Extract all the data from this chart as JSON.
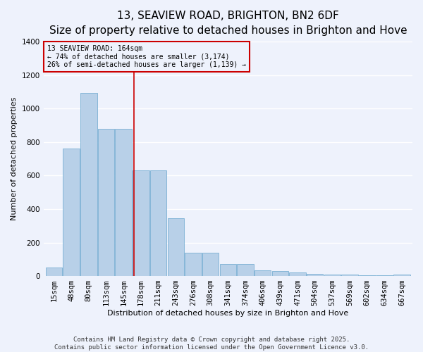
{
  "title": "13, SEAVIEW ROAD, BRIGHTON, BN2 6DF",
  "subtitle": "Size of property relative to detached houses in Brighton and Hove",
  "xlabel": "Distribution of detached houses by size in Brighton and Hove",
  "ylabel": "Number of detached properties",
  "categories": [
    "15sqm",
    "48sqm",
    "80sqm",
    "113sqm",
    "145sqm",
    "178sqm",
    "211sqm",
    "243sqm",
    "276sqm",
    "308sqm",
    "341sqm",
    "374sqm",
    "406sqm",
    "439sqm",
    "471sqm",
    "504sqm",
    "537sqm",
    "569sqm",
    "602sqm",
    "634sqm",
    "667sqm"
  ],
  "bar_heights": [
    50,
    760,
    1095,
    880,
    880,
    630,
    630,
    345,
    140,
    140,
    70,
    70,
    35,
    30,
    20,
    15,
    10,
    8,
    5,
    3,
    10
  ],
  "bar_color": "#b8d0e8",
  "bar_edge_color": "#7ab0d4",
  "vline_x": 4.58,
  "vline_color": "#cc0000",
  "annotation_text": "13 SEAVIEW ROAD: 164sqm\n← 74% of detached houses are smaller (3,174)\n26% of semi-detached houses are larger (1,139) →",
  "annotation_box_facecolor": "#eef2fc",
  "annotation_box_edgecolor": "#cc0000",
  "ylim": [
    0,
    1400
  ],
  "yticks": [
    0,
    200,
    400,
    600,
    800,
    1000,
    1200,
    1400
  ],
  "footer": "Contains HM Land Registry data © Crown copyright and database right 2025.\nContains public sector information licensed under the Open Government Licence v3.0.",
  "background_color": "#eef2fc",
  "grid_color": "#ffffff",
  "title_fontsize": 11,
  "axis_fontsize": 8,
  "tick_fontsize": 7.5,
  "footer_fontsize": 6.5
}
